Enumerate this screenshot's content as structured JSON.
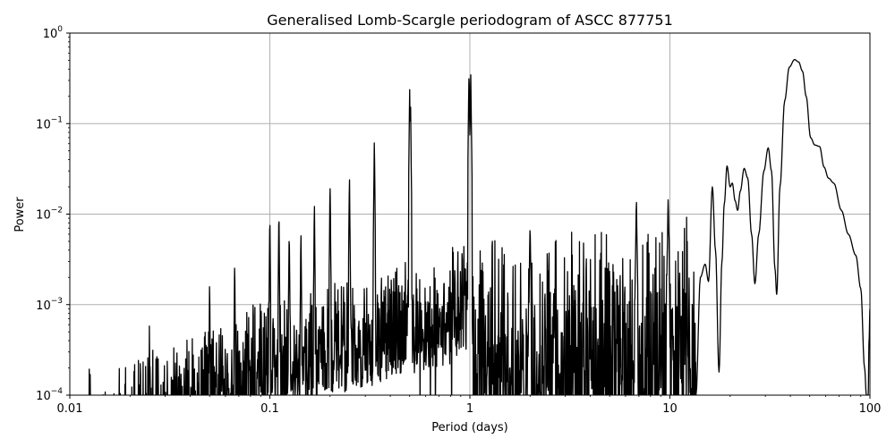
{
  "chart_data": {
    "type": "line",
    "title": "Generalised Lomb-Scargle periodogram of ASCC 877751",
    "xlabel": "Period (days)",
    "ylabel": "Power",
    "xscale": "log",
    "yscale": "log",
    "xlim": [
      0.01,
      100
    ],
    "ylim": [
      0.0001,
      1
    ],
    "grid": true,
    "line_color": "#000000",
    "grid_color": "#b0b0b0",
    "x_ticks": [
      {
        "value": 0.01,
        "label": "0.01"
      },
      {
        "value": 0.1,
        "label": "0.1"
      },
      {
        "value": 1,
        "label": "1"
      },
      {
        "value": 10,
        "label": "10"
      },
      {
        "value": 100,
        "label": "100"
      }
    ],
    "y_ticks": [
      {
        "value": 1,
        "base": "10",
        "exp": "0"
      },
      {
        "value": 0.1,
        "base": "10",
        "exp": "−1"
      },
      {
        "value": 0.01,
        "base": "10",
        "exp": "−2"
      },
      {
        "value": 0.001,
        "base": "10",
        "exp": "−3"
      },
      {
        "value": 0.0001,
        "base": "10",
        "exp": "−4"
      }
    ],
    "notable_peaks": [
      {
        "period": 0.0125,
        "power": 0.00025
      },
      {
        "period": 0.025,
        "power": 0.00075
      },
      {
        "period": 0.05,
        "power": 0.0025
      },
      {
        "period": 0.0667,
        "power": 0.004
      },
      {
        "period": 0.1,
        "power": 0.013
      },
      {
        "period": 0.111,
        "power": 0.013
      },
      {
        "period": 0.125,
        "power": 0.009
      },
      {
        "period": 0.143,
        "power": 0.008
      },
      {
        "period": 0.167,
        "power": 0.017
      },
      {
        "period": 0.2,
        "power": 0.028
      },
      {
        "period": 0.25,
        "power": 0.031
      },
      {
        "period": 0.333,
        "power": 0.076
      },
      {
        "period": 0.5,
        "power": 0.28
      },
      {
        "period": 0.505,
        "power": 0.2
      },
      {
        "period": 0.99,
        "power": 0.46
      },
      {
        "period": 1.01,
        "power": 0.46
      },
      {
        "period": 2.0,
        "power": 0.01
      },
      {
        "period": 6.8,
        "power": 0.017
      },
      {
        "period": 9.8,
        "power": 0.018
      },
      {
        "period": 16.3,
        "power": 0.02
      },
      {
        "period": 19.3,
        "power": 0.034
      },
      {
        "period": 23.5,
        "power": 0.032
      },
      {
        "period": 31.0,
        "power": 0.054
      },
      {
        "period": 42.0,
        "power": 0.5
      },
      {
        "period": 55.0,
        "power": 0.06
      },
      {
        "period": 65.0,
        "power": 0.023
      }
    ],
    "long_period_envelope": [
      [
        13.5,
        0.0001
      ],
      [
        14.2,
        0.002
      ],
      [
        15.0,
        0.0028
      ],
      [
        15.6,
        0.0018
      ],
      [
        16.3,
        0.02
      ],
      [
        16.9,
        0.004
      ],
      [
        17.6,
        0.00018
      ],
      [
        18.2,
        0.003
      ],
      [
        18.7,
        0.013
      ],
      [
        19.3,
        0.034
      ],
      [
        20.0,
        0.02
      ],
      [
        20.5,
        0.022
      ],
      [
        21.2,
        0.014
      ],
      [
        21.8,
        0.011
      ],
      [
        22.5,
        0.018
      ],
      [
        23.5,
        0.032
      ],
      [
        24.5,
        0.025
      ],
      [
        25.6,
        0.006
      ],
      [
        26.6,
        0.0017
      ],
      [
        27.8,
        0.006
      ],
      [
        29.5,
        0.03
      ],
      [
        31.0,
        0.054
      ],
      [
        32.2,
        0.03
      ],
      [
        33.5,
        0.0025
      ],
      [
        34.2,
        0.0013
      ],
      [
        35.5,
        0.02
      ],
      [
        37.5,
        0.18
      ],
      [
        39.5,
        0.42
      ],
      [
        42.0,
        0.51
      ],
      [
        44.0,
        0.48
      ],
      [
        46.0,
        0.38
      ],
      [
        48.0,
        0.2
      ],
      [
        50.5,
        0.07
      ],
      [
        53.0,
        0.058
      ],
      [
        56.0,
        0.056
      ],
      [
        59.0,
        0.033
      ],
      [
        62.0,
        0.025
      ],
      [
        66.0,
        0.022
      ],
      [
        72.0,
        0.011
      ],
      [
        78.0,
        0.006
      ],
      [
        85.0,
        0.0035
      ],
      [
        90.0,
        0.0015
      ],
      [
        94.0,
        0.0002
      ],
      [
        96.0,
        0.0001
      ],
      [
        98.0,
        0.0001
      ],
      [
        99.0,
        0.0004
      ],
      [
        100.0,
        0.0009
      ]
    ]
  }
}
